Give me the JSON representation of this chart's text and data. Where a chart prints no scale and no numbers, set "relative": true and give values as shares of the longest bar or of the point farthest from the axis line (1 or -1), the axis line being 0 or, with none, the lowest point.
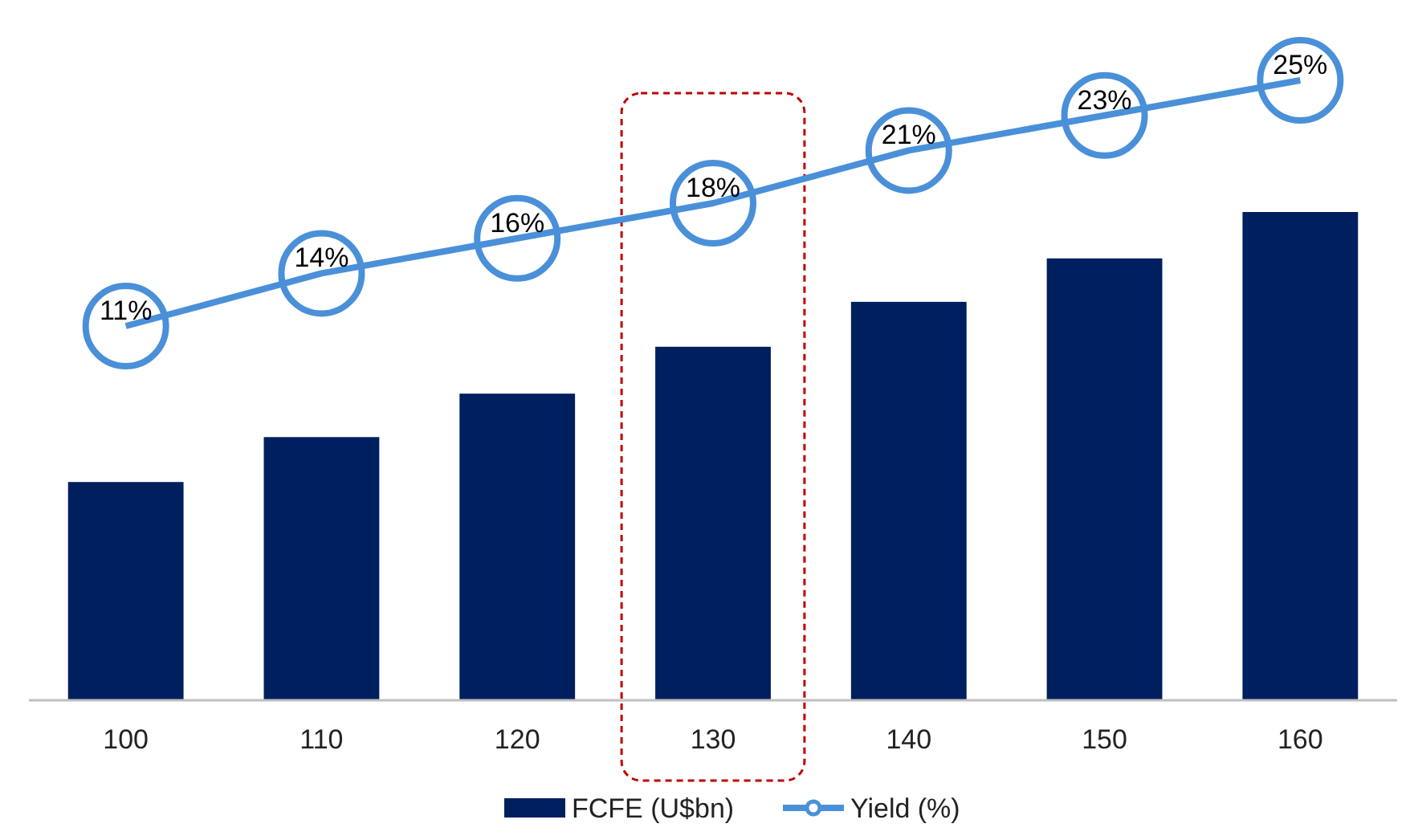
{
  "chart_data": [
    {
      "type": "bar",
      "relative": true,
      "categories": [
        "100",
        "110",
        "120",
        "130",
        "140",
        "150",
        "160"
      ],
      "legend": "bottom",
      "series": [
        {
          "name": "FCFE (U$bn)",
          "color": "#001f5f",
          "values": [
            0.447,
            0.539,
            0.628,
            0.724,
            0.816,
            0.905,
            1
          ]
        }
      ]
    },
    {
      "type": "line",
      "categories": [
        null,
        null,
        null,
        null,
        null,
        null,
        null
      ],
      "legend": "bottom",
      "series": [
        {
          "name": "Yield (%)",
          "color": "#4a90d9",
          "marker": "none",
          "values": [
            11,
            14,
            16,
            18,
            21,
            23,
            25
          ],
          "value_labels": [
            "11%",
            "14%",
            "16%",
            "18%",
            "21%",
            "23%",
            "25%"
          ]
        }
      ]
    }
  ]
}
